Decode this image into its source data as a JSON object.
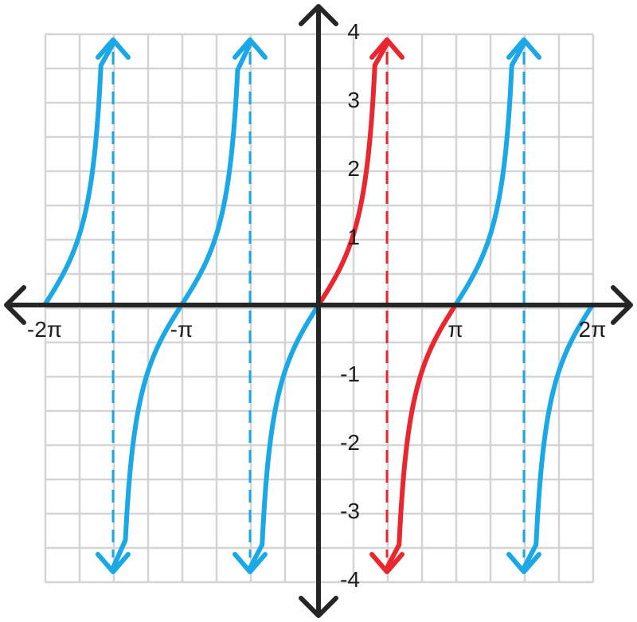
{
  "chart_data": {
    "type": "line",
    "function": "tan(x)",
    "xlim": [
      -6.2832,
      6.2832
    ],
    "ylim": [
      -4,
      4
    ],
    "grid": true,
    "x_tick_labels": [
      {
        "value": -6.2832,
        "label": "-2π"
      },
      {
        "value": -3.1416,
        "label": "-π"
      },
      {
        "value": 3.1416,
        "label": "π"
      },
      {
        "value": 6.2832,
        "label": "2π"
      }
    ],
    "y_tick_labels": [
      {
        "value": 4,
        "label": "4"
      },
      {
        "value": 3,
        "label": "3"
      },
      {
        "value": 2,
        "label": "2"
      },
      {
        "value": 1,
        "label": "1"
      },
      {
        "value": -1,
        "label": "-1"
      },
      {
        "value": -2,
        "label": "-2"
      },
      {
        "value": -3,
        "label": "-3"
      },
      {
        "value": -4,
        "label": "-4"
      }
    ],
    "asymptotes": [
      -4.7124,
      -1.5708,
      1.5708,
      4.7124
    ],
    "highlight_asymptote": 1.5708,
    "series": [
      {
        "color": "#1aa9e6",
        "x_range": [
          -6.2832,
          -4.7124
        ]
      },
      {
        "color": "#1aa9e6",
        "x_range": [
          -4.7124,
          -1.5708
        ]
      },
      {
        "color": "#1aa9e6",
        "x_range": [
          -1.5708,
          0
        ]
      },
      {
        "color": "#e8272f",
        "x_range": [
          0,
          1.5708
        ]
      },
      {
        "color": "#e8272f",
        "x_range": [
          1.5708,
          3.1416
        ]
      },
      {
        "color": "#1aa9e6",
        "x_range": [
          3.1416,
          4.7124
        ]
      },
      {
        "color": "#1aa9e6",
        "x_range": [
          4.7124,
          6.2832
        ]
      }
    ]
  }
}
